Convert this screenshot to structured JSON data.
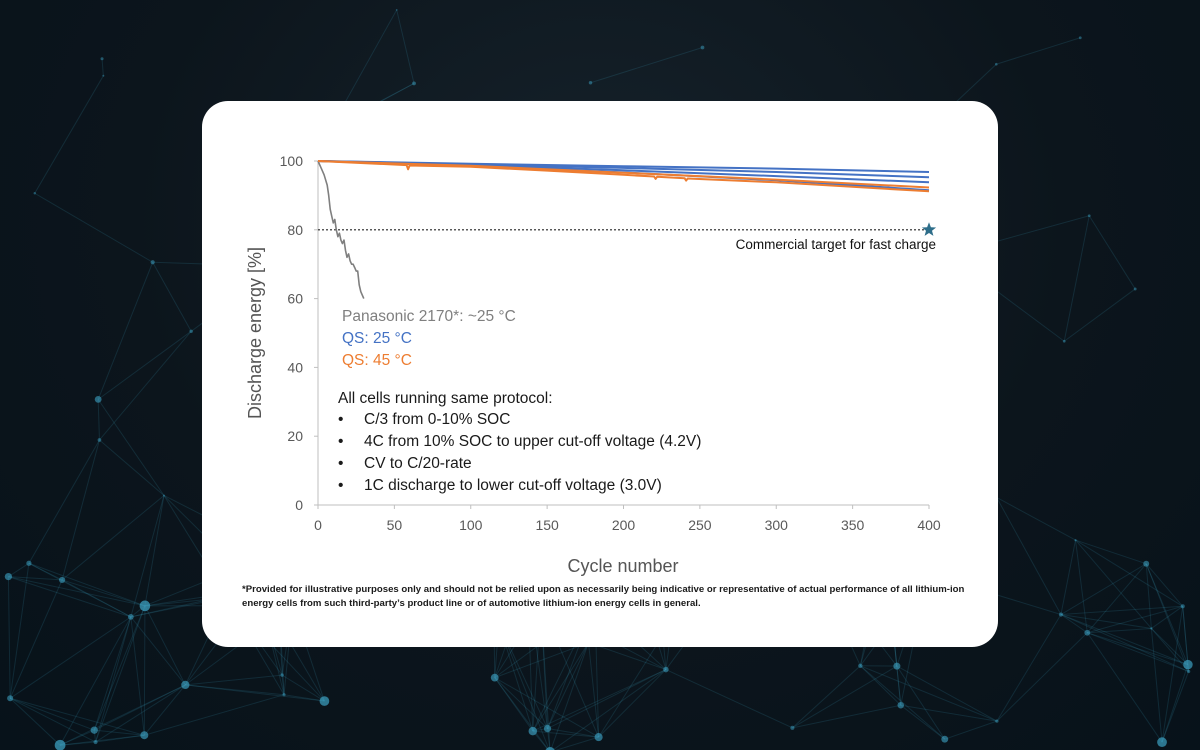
{
  "colors": {
    "panasonic": "#7f7f7f",
    "qs25": "#4472c4",
    "qs45": "#ed7d31",
    "target_star": "#2e6e8a",
    "network": "#3fa7c9"
  },
  "chart_data": {
    "type": "line",
    "xlabel": "Cycle number",
    "ylabel": "Discharge energy [%]",
    "xlim": [
      0,
      400
    ],
    "ylim": [
      0,
      100
    ],
    "xticks": [
      0,
      50,
      100,
      150,
      200,
      250,
      300,
      350,
      400
    ],
    "yticks": [
      0,
      20,
      40,
      60,
      80,
      100
    ],
    "grid": false,
    "reference_line": {
      "y": 80,
      "style": "dotted",
      "label": "Commercial target for fast charge",
      "marker": "star",
      "marker_x": 400
    },
    "series": [
      {
        "name": "Panasonic 2170*: ~25 °C",
        "color_key": "panasonic",
        "x": [
          0,
          2,
          4,
          6,
          7,
          8,
          9,
          10,
          11,
          12,
          13,
          14,
          15,
          16,
          17,
          18,
          19,
          20,
          21,
          22,
          23,
          24,
          25,
          26,
          27,
          28,
          30
        ],
        "y": [
          100,
          98,
          96,
          93,
          90,
          86,
          84,
          82,
          83,
          80,
          78,
          79,
          77,
          76,
          77,
          74,
          72,
          73,
          71,
          70,
          70,
          69,
          68,
          68,
          64,
          62,
          60
        ]
      },
      {
        "name": "QS: 25 °C",
        "color_key": "qs25",
        "x": [
          0,
          100,
          200,
          300,
          400
        ],
        "y": [
          100,
          99.2,
          98.5,
          97.8,
          96.8
        ]
      },
      {
        "name": "QS: 25 °C",
        "color_key": "qs25",
        "x": [
          0,
          100,
          200,
          300,
          400
        ],
        "y": [
          100,
          99.0,
          98.0,
          96.8,
          95.3
        ]
      },
      {
        "name": "QS: 25 °C",
        "color_key": "qs25",
        "x": [
          0,
          100,
          200,
          300,
          400
        ],
        "y": [
          100,
          98.8,
          97.3,
          95.6,
          93.8
        ]
      },
      {
        "name": "QS: 25 °C",
        "color_key": "qs25",
        "x": [
          0,
          100,
          200,
          300,
          400
        ],
        "y": [
          100,
          98.5,
          96.7,
          94.4,
          91.5
        ]
      },
      {
        "name": "QS: 45 °C",
        "color_key": "qs45",
        "x": [
          0,
          58,
          59,
          60,
          100,
          150,
          200,
          220,
          221,
          222,
          240,
          241,
          242,
          300,
          400
        ],
        "y": [
          100,
          98.8,
          97.6,
          98.7,
          98.3,
          97.2,
          96.0,
          95.5,
          94.8,
          95.4,
          95.0,
          94.3,
          94.9,
          93.8,
          91.2
        ]
      },
      {
        "name": "QS: 45 °C",
        "color_key": "qs45",
        "x": [
          0,
          100,
          200,
          300,
          400
        ],
        "y": [
          100,
          98.6,
          96.6,
          94.6,
          92.3
        ]
      }
    ],
    "legend": [
      {
        "label": "Panasonic 2170*: ~25 °C",
        "color_key": "panasonic"
      },
      {
        "label": "QS: 25 °C",
        "color_key": "qs25"
      },
      {
        "label": "QS: 45 °C",
        "color_key": "qs45"
      }
    ],
    "protocol_heading": "All cells running same protocol:",
    "protocol_items": [
      "C/3 from 0-10% SOC",
      "4C from 10% SOC to upper cut-off voltage (4.2V)",
      "CV to C/20-rate",
      "1C discharge to lower cut-off voltage (3.0V)"
    ],
    "footnote": "*Provided for illustrative purposes only and should not be relied upon as necessarily being indicative or representative of actual performance of all lithium-ion energy cells from such third-party’s product line or of automotive lithium-ion energy cells in general."
  }
}
